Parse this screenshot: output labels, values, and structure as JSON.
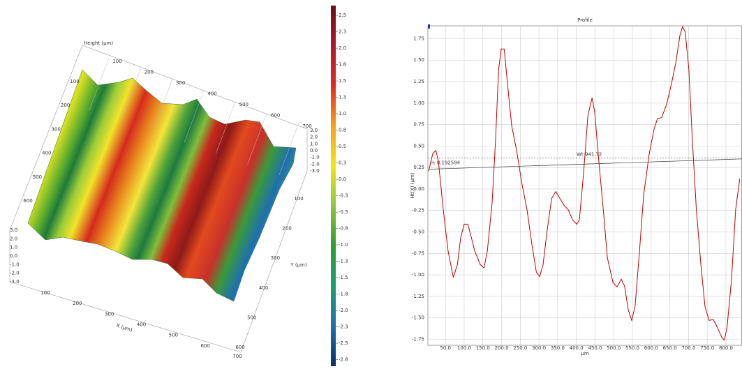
{
  "chart_data": [
    {
      "type": "surface",
      "zlabel": "Height (µm)",
      "xlabel": "X (µm)",
      "ylabel": "Y (µm)",
      "xticks": [
        100,
        200,
        300,
        400,
        500,
        600,
        700
      ],
      "yticks": [
        100,
        200,
        300,
        400,
        500,
        600
      ],
      "zticks": [
        {
          "value": 3,
          "label": "3.0"
        },
        {
          "value": 2,
          "label": "2.0"
        },
        {
          "value": 1,
          "label": "1.0"
        },
        {
          "value": 0,
          "label": "0.0"
        },
        {
          "value": -1,
          "label": "-1.0"
        },
        {
          "value": -2,
          "label": "-2.0"
        },
        {
          "value": -3,
          "label": "-3.0"
        }
      ],
      "colorbar_lim": [
        -2.85,
        2.65
      ],
      "colorbar_ticks": [
        2.5,
        {
          "value": 2.25,
          "label": "2.3"
        },
        {
          "value": 2,
          "label": "2.0"
        },
        {
          "value": 1.75,
          "label": "1.8"
        },
        1.5,
        {
          "value": 1.25,
          "label": "1.3"
        },
        {
          "value": 1,
          "label": "1.0"
        },
        {
          "value": 0.75,
          "label": "0.8"
        },
        0.5,
        {
          "value": 0.25,
          "label": "0.3"
        },
        {
          "value": 0,
          "label": "0.0"
        },
        {
          "value": -0.25,
          "label": "-0.3"
        },
        -0.5,
        {
          "value": -0.75,
          "label": "-0.8"
        },
        {
          "value": -1,
          "label": "-1.0"
        },
        {
          "value": -1.25,
          "label": "-1.3"
        },
        -1.5,
        {
          "value": -1.75,
          "label": "-1.8"
        },
        {
          "value": -2,
          "label": "-2.0"
        },
        {
          "value": -2.25,
          "label": "-2.3"
        },
        -2.5,
        {
          "value": -2.75,
          "label": "-2.8"
        }
      ],
      "colorscale": [
        "#08306b",
        "#1f6fb4",
        "#1a9e77",
        "#2ca02c",
        "#8cc63f",
        "#f5e50a",
        "#f7a11a",
        "#e8281e",
        "#b2182b",
        "#6b0f1a"
      ]
    },
    {
      "type": "line",
      "title": "Profile",
      "xlabel": "µm",
      "ylabel": "Ht(X) (µm)",
      "xlim": [
        3,
        843
      ],
      "ylim": [
        -1.82,
        1.9
      ],
      "grid": true,
      "xticks": [
        {
          "value": 50,
          "label": "50.0"
        },
        {
          "value": 100,
          "label": "100.0"
        },
        {
          "value": 150,
          "label": "150.0"
        },
        {
          "value": 200,
          "label": "200.0"
        },
        {
          "value": 250,
          "label": "250.0"
        },
        {
          "value": 300,
          "label": "300.0"
        },
        {
          "value": 350,
          "label": "350.0"
        },
        {
          "value": 400,
          "label": "400.0"
        },
        {
          "value": 450,
          "label": "450.0"
        },
        {
          "value": 500,
          "label": "500.0"
        },
        {
          "value": 550,
          "label": "550.0"
        },
        {
          "value": 600,
          "label": "600.0"
        },
        {
          "value": 650,
          "label": "650.0"
        },
        {
          "value": 700,
          "label": "700.0"
        },
        {
          "value": 750,
          "label": "750.0"
        },
        {
          "value": 800,
          "label": "800.0"
        }
      ],
      "yticks": [
        1.75,
        {
          "value": 1.5,
          "label": "1.50"
        },
        1.25,
        {
          "value": 1,
          "label": "1.00"
        },
        0.75,
        {
          "value": 0.5,
          "label": "0.50"
        },
        0.25,
        {
          "value": 0,
          "label": "0.00"
        },
        -0.25,
        {
          "value": -0.5,
          "label": "-0.50"
        },
        -0.75,
        {
          "value": -1,
          "label": "-1.00"
        },
        -1.25,
        {
          "value": -1.5,
          "label": "-1.50"
        },
        -1.75
      ],
      "series": [
        {
          "color": "#c00000",
          "x": [
            5,
            16,
            24,
            31,
            44,
            57,
            71,
            82,
            91,
            100,
            110,
            119,
            128,
            143,
            153,
            162,
            175,
            184,
            192,
            199,
            207,
            216,
            227,
            240,
            255,
            268,
            281,
            293,
            302,
            311,
            322,
            334,
            345,
            356,
            367,
            378,
            390,
            401,
            408,
            419,
            431,
            442,
            449,
            460,
            472,
            483,
            498,
            509,
            520,
            529,
            539,
            548,
            557,
            569,
            580,
            595,
            608,
            617,
            628,
            641,
            654,
            666,
            677,
            684,
            691,
            701,
            710,
            721,
            733,
            744,
            755,
            766,
            777,
            789,
            796,
            803,
            815,
            826,
            837
          ],
          "values": [
            0.21,
            0.41,
            0.45,
            0.33,
            -0.24,
            -0.72,
            -1.03,
            -0.88,
            -0.56,
            -0.41,
            -0.41,
            -0.56,
            -0.72,
            -0.88,
            -0.92,
            -0.72,
            -0.15,
            0.58,
            1.39,
            1.63,
            1.63,
            1.22,
            0.74,
            0.45,
            0.05,
            -0.24,
            -0.64,
            -0.97,
            -1.02,
            -0.88,
            -0.48,
            -0.11,
            -0.03,
            -0.11,
            -0.19,
            -0.24,
            -0.36,
            -0.41,
            -0.36,
            0.17,
            0.86,
            1.06,
            0.9,
            0.33,
            -0.24,
            -0.8,
            -1.09,
            -1.14,
            -1.05,
            -1.13,
            -1.41,
            -1.53,
            -1.37,
            -0.72,
            -0.07,
            0.41,
            0.7,
            0.82,
            0.83,
            0.98,
            1.22,
            1.47,
            1.79,
            1.89,
            1.83,
            1.39,
            0.58,
            -0.24,
            -0.88,
            -1.37,
            -1.53,
            -1.52,
            -1.61,
            -1.73,
            -1.76,
            -1.61,
            -1.05,
            -0.24,
            0.12
          ]
        }
      ],
      "fit_line": {
        "x": [
          5,
          843
        ],
        "values": [
          0.23,
          0.35
        ]
      },
      "level_line": 0.36,
      "annotations": [
        "Wt 941.72",
        "H: 0.192594"
      ]
    }
  ]
}
